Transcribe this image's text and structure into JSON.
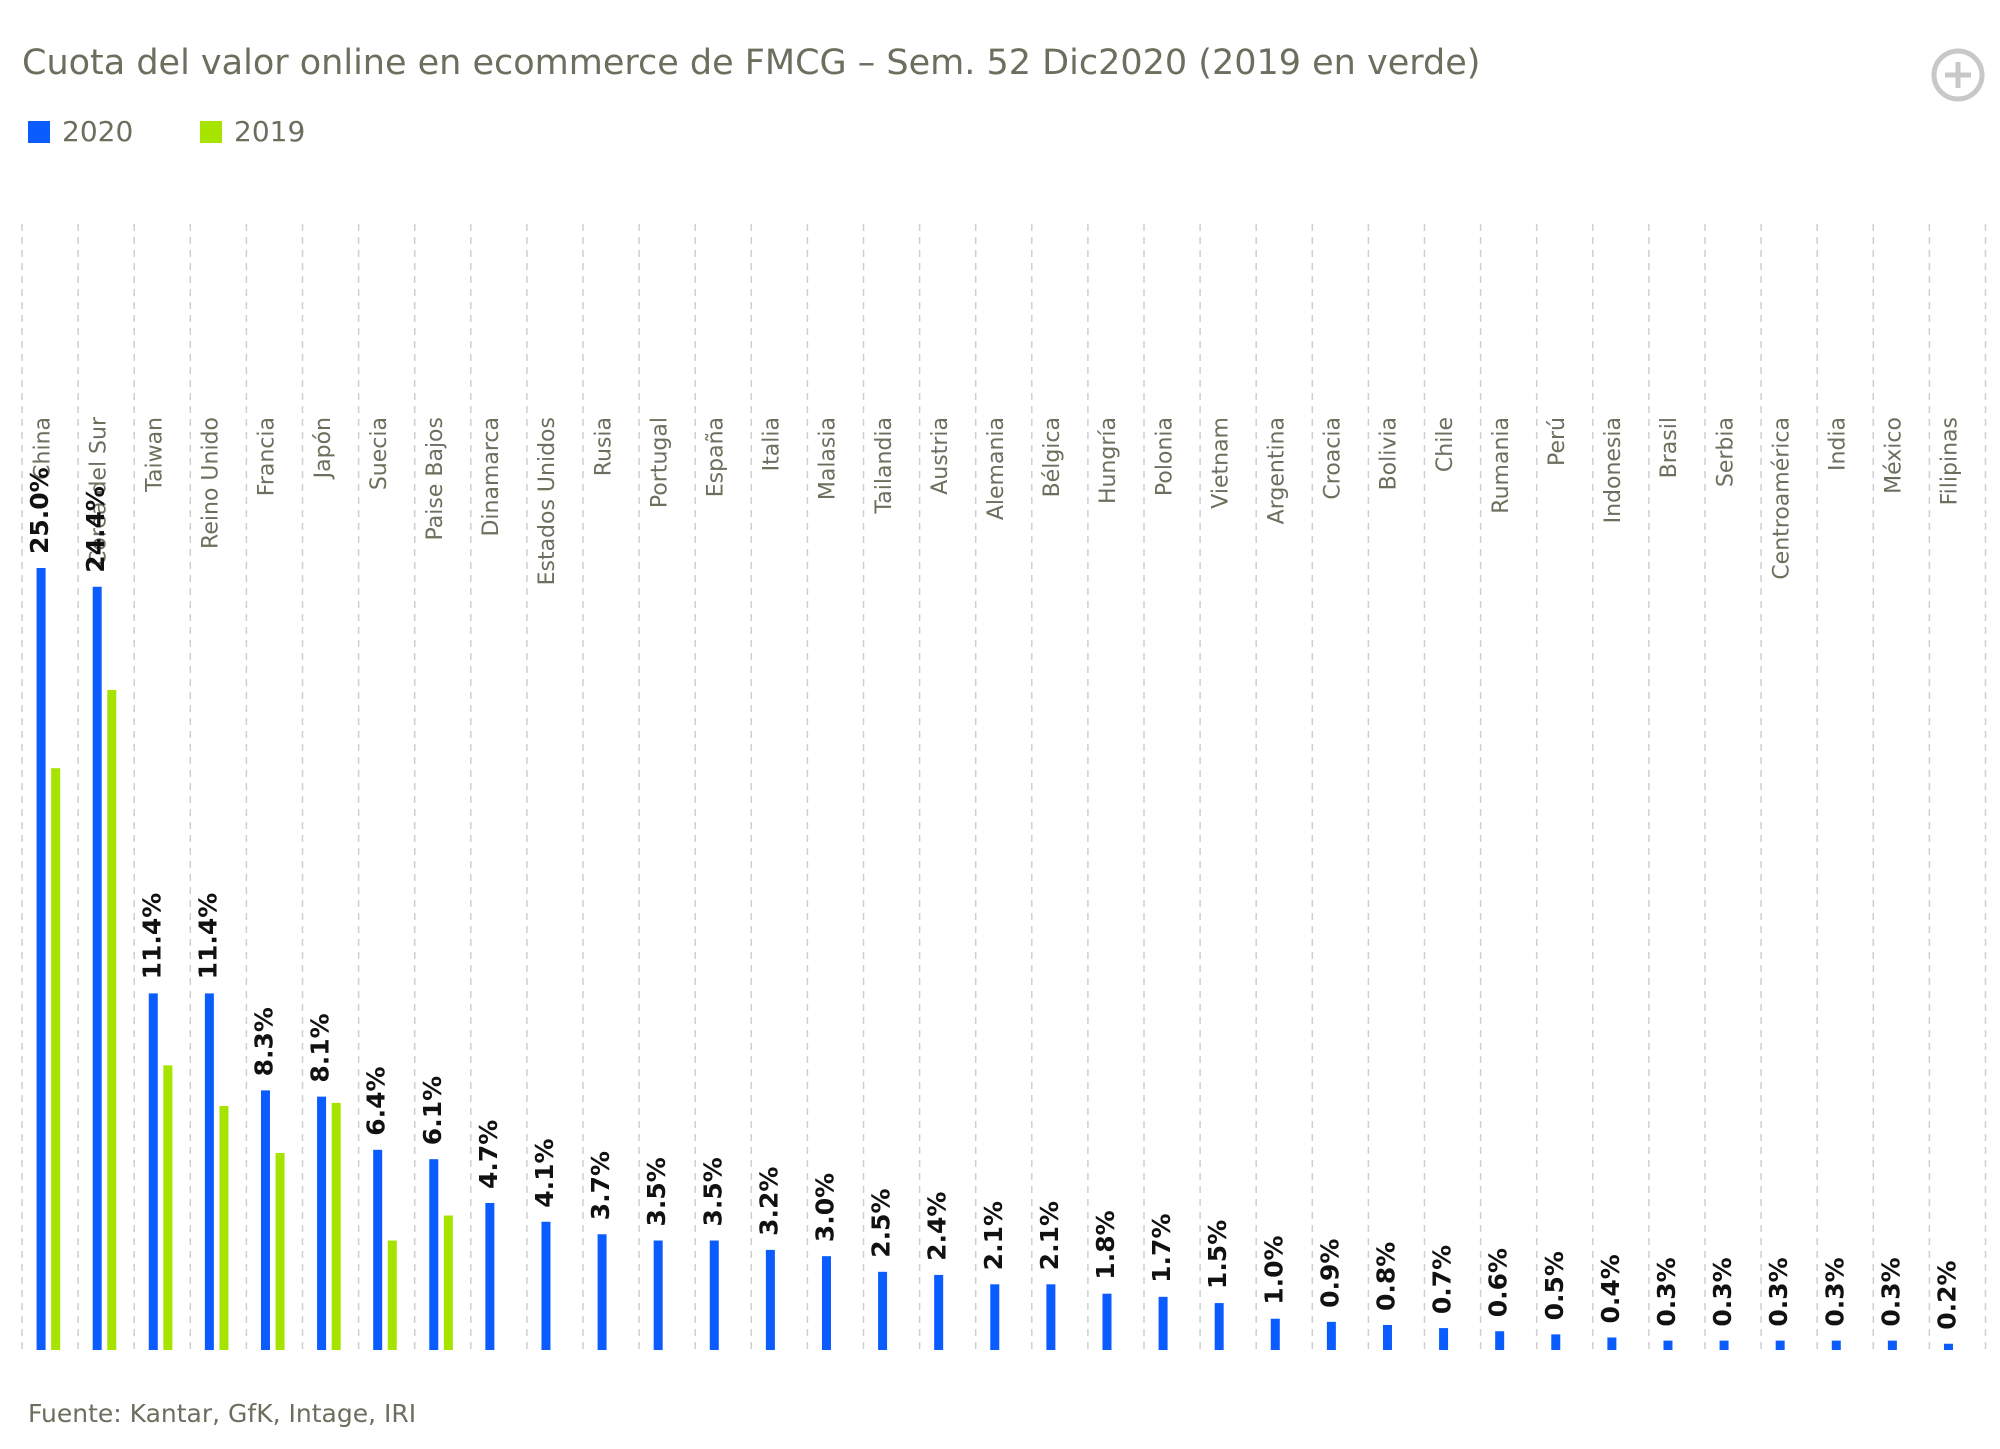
{
  "chart_data": {
    "type": "bar",
    "title": "Cuota del valor online en ecommerce de FMCG – Sem. 52 Dic2020 (2019 en verde)",
    "source": "Fuente: Kantar, GfK, Intage, IRI",
    "categories": [
      "China",
      "Corea del Sur",
      "Taiwan",
      "Reino Unido",
      "Francia",
      "Japón",
      "Suecia",
      "Paise Bajos",
      "Dinamarca",
      "Estados Unidos",
      "Rusia",
      "Portugal",
      "España",
      "Italia",
      "Malasia",
      "Tailandia",
      "Austria",
      "Alemania",
      "Bélgica",
      "Hungría",
      "Polonia",
      "Vietnam",
      "Argentina",
      "Croacia",
      "Bolivia",
      "Chile",
      "Rumania",
      "Perú",
      "Indonesia",
      "Brasil",
      "Serbia",
      "Centroamérica",
      "India",
      "México",
      "Filipinas"
    ],
    "series": [
      {
        "name": "2020",
        "color": "#0a5cff",
        "values": [
          25.0,
          24.4,
          11.4,
          11.4,
          8.3,
          8.1,
          6.4,
          6.1,
          4.7,
          4.1,
          3.7,
          3.5,
          3.5,
          3.2,
          3.0,
          2.5,
          2.4,
          2.1,
          2.1,
          1.8,
          1.7,
          1.5,
          1.0,
          0.9,
          0.8,
          0.7,
          0.6,
          0.5,
          0.4,
          0.3,
          0.3,
          0.3,
          0.3,
          0.3,
          0.2
        ],
        "value_labels": [
          "25.0%",
          "24.4%",
          "11.4%",
          "11.4%",
          "8.3%",
          "8.1%",
          "6.4%",
          "6.1%",
          "4.7%",
          "4.1%",
          "3.7%",
          "3.5%",
          "3.5%",
          "3.2%",
          "3.0%",
          "2.5%",
          "2.4%",
          "2.1%",
          "2.1%",
          "1.8%",
          "1.7%",
          "1.5%",
          "1.0%",
          "0.9%",
          "0.8%",
          "0.7%",
          "0.6%",
          "0.5%",
          "0.4%",
          "0.3%",
          "0.3%",
          "0.3%",
          "0.3%",
          "0.3%",
          "0.2%"
        ]
      },
      {
        "name": "2019",
        "color": "#a6e400",
        "values": [
          18.6,
          21.1,
          9.1,
          7.8,
          6.3,
          7.9,
          3.5,
          4.3,
          null,
          null,
          null,
          null,
          null,
          null,
          null,
          null,
          null,
          null,
          null,
          null,
          null,
          null,
          null,
          null,
          null,
          null,
          null,
          null,
          null,
          null,
          null,
          null,
          null,
          null,
          null
        ]
      }
    ]
  }
}
